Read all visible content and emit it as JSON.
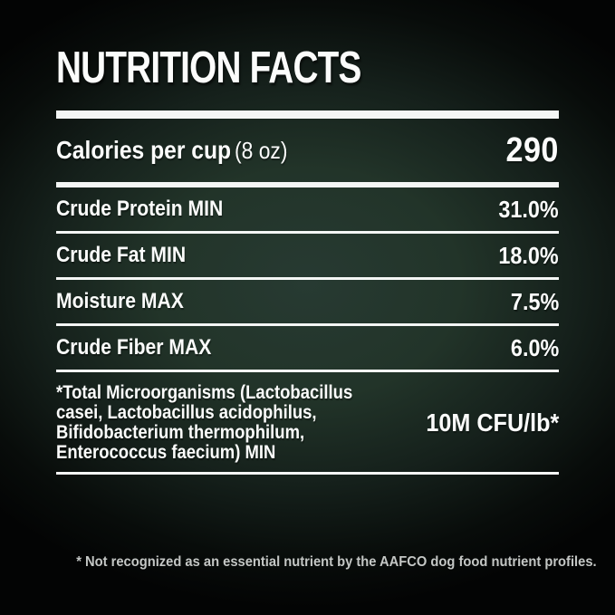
{
  "title": "NUTRITION FACTS",
  "calories": {
    "label": "Calories per cup",
    "serving": "(8 oz)",
    "value": "290"
  },
  "rows": [
    {
      "label": "Crude Protein MIN",
      "value": "31.0%"
    },
    {
      "label": "Crude Fat MIN",
      "value": "18.0%"
    },
    {
      "label": "Moisture MAX",
      "value": "7.5%"
    },
    {
      "label": "Crude Fiber MAX",
      "value": "6.0%"
    }
  ],
  "microorganisms": {
    "label": "*Total Microorganisms (Lactobacillus\ncasei, Lactobacillus acidophilus,\nBifidobacterium thermophilum,\nEnterococcus faecium) MIN",
    "value": "10M CFU/lb*"
  },
  "footnote": "* Not recognized as an essential nutrient by the AAFCO dog food nutrient profiles.",
  "colors": {
    "background_center": "#273a32",
    "background_edge": "#030404",
    "rule": "#f4f6f5",
    "text": "#fbfcfb",
    "footnote_text": "#c4c7c5"
  }
}
